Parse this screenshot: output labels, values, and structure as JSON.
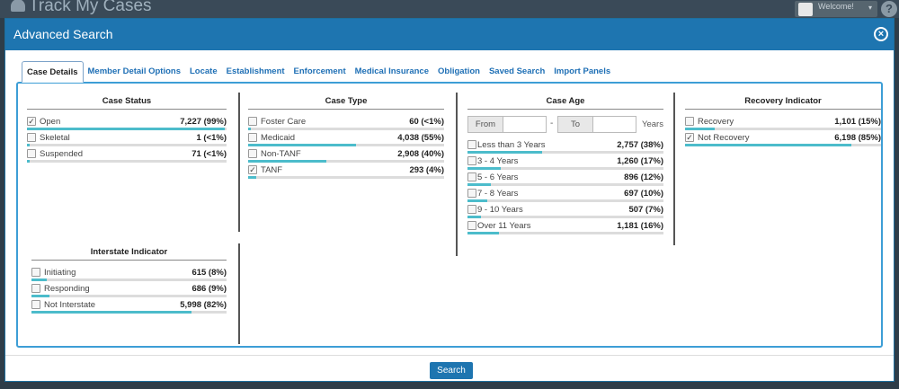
{
  "app": {
    "title": "Track My Cases",
    "welcome": "Welcome!",
    "help": "?"
  },
  "modal": {
    "title": "Advanced Search",
    "close": "×",
    "search_label": "Search"
  },
  "tabs": [
    {
      "label": "Case Details"
    },
    {
      "label": "Member Detail Options"
    },
    {
      "label": "Locate"
    },
    {
      "label": "Establishment"
    },
    {
      "label": "Enforcement"
    },
    {
      "label": "Medical Insurance"
    },
    {
      "label": "Obligation"
    },
    {
      "label": "Saved Search"
    },
    {
      "label": "Import Panels"
    }
  ],
  "case_status": {
    "title": "Case Status",
    "items": [
      {
        "label": "Open",
        "count": "7,227 (99%)",
        "checked": true,
        "pct": 99
      },
      {
        "label": "Skeletal",
        "count": "1 (<1%)",
        "checked": false,
        "pct": 0.5
      },
      {
        "label": "Suspended",
        "count": "71 (<1%)",
        "checked": false,
        "pct": 0.8
      }
    ]
  },
  "case_type": {
    "title": "Case Type",
    "items": [
      {
        "label": "Foster Care",
        "count": "60 (<1%)",
        "checked": false,
        "pct": 0.8
      },
      {
        "label": "Medicaid",
        "count": "4,038 (55%)",
        "checked": false,
        "pct": 55
      },
      {
        "label": "Non-TANF",
        "count": "2,908 (40%)",
        "checked": false,
        "pct": 40
      },
      {
        "label": "TANF",
        "count": "293 (4%)",
        "checked": true,
        "pct": 4
      }
    ]
  },
  "case_age": {
    "title": "Case Age",
    "from_label": "From",
    "to_label": "To",
    "dash": "-",
    "years_label": "Years",
    "items": [
      {
        "label": "Less than 3 Years",
        "count": "2,757 (38%)",
        "checked": false,
        "pct": 38
      },
      {
        "label": "3 - 4 Years",
        "count": "1,260 (17%)",
        "checked": false,
        "pct": 17
      },
      {
        "label": "5 - 6 Years",
        "count": "896 (12%)",
        "checked": false,
        "pct": 12
      },
      {
        "label": "7 - 8 Years",
        "count": "697 (10%)",
        "checked": false,
        "pct": 10
      },
      {
        "label": "9 - 10 Years",
        "count": "507 (7%)",
        "checked": false,
        "pct": 7
      },
      {
        "label": "Over 11 Years",
        "count": "1,181 (16%)",
        "checked": false,
        "pct": 16
      }
    ]
  },
  "recovery_indicator": {
    "title": "Recovery Indicator",
    "items": [
      {
        "label": "Recovery",
        "count": "1,101 (15%)",
        "checked": false,
        "pct": 15
      },
      {
        "label": "Not Recovery",
        "count": "6,198 (85%)",
        "checked": true,
        "pct": 85
      }
    ]
  },
  "interstate_indicator": {
    "title": "Interstate Indicator",
    "items": [
      {
        "label": "Initiating",
        "count": "615 (8%)",
        "checked": false,
        "pct": 8
      },
      {
        "label": "Responding",
        "count": "686 (9%)",
        "checked": false,
        "pct": 9
      },
      {
        "label": "Not Interstate",
        "count": "5,998 (82%)",
        "checked": false,
        "pct": 82
      }
    ]
  },
  "colors": {
    "header": "#1e75b0",
    "bar_fill": "#4cbccb",
    "bar_track": "#dcdcdc",
    "tab_link": "#1e6fb5"
  }
}
